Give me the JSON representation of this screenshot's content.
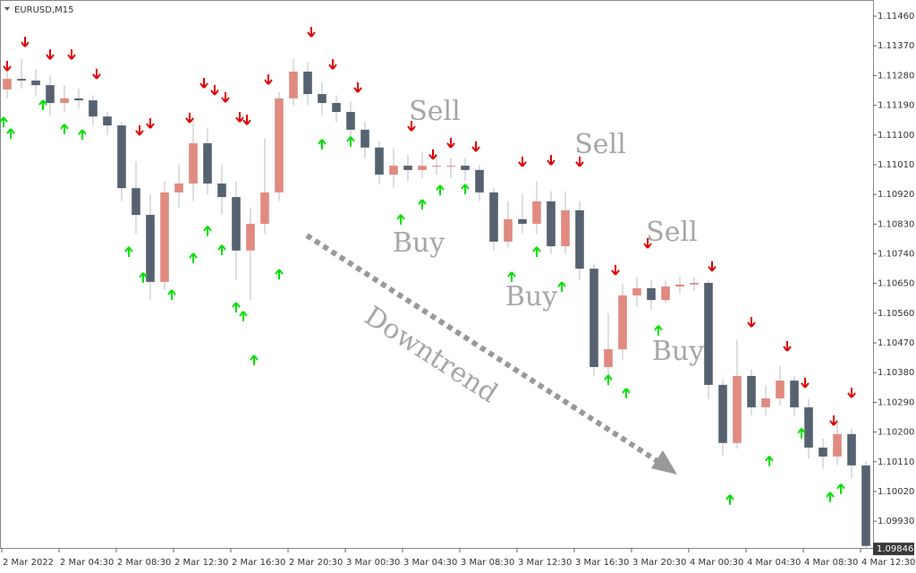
{
  "chart_data": {
    "type": "candlestick",
    "title": "EURUSD,M15",
    "x": [
      2,
      6,
      10,
      14,
      18,
      22,
      26,
      30,
      34,
      38,
      42,
      46,
      50,
      54,
      58,
      62,
      66,
      70,
      74,
      78,
      82,
      86,
      90,
      94,
      98,
      102,
      106,
      110,
      114,
      118,
      122,
      126,
      130,
      134,
      138,
      142,
      146,
      150,
      154,
      158,
      162,
      166,
      170,
      174,
      178,
      182,
      186,
      190,
      194,
      198,
      202,
      206,
      210,
      214,
      218,
      222,
      226,
      230,
      234,
      238,
      242
    ],
    "open": [
      1.11238,
      1.1127,
      1.11265,
      1.11251,
      1.11197,
      1.11211,
      1.11205,
      1.11156,
      1.11129,
      1.10939,
      1.10858,
      1.10655,
      1.10926,
      1.10953,
      1.11075,
      1.10953,
      1.10912,
      1.1075,
      1.10831,
      1.10926,
      1.11211,
      1.11292,
      1.11224,
      1.11197,
      1.1117,
      1.11116,
      1.11062,
      1.1098,
      1.11007,
      1.10994,
      1.11007,
      1.11007,
      1.11007,
      1.10994,
      1.10926,
      1.10777,
      1.10845,
      1.10831,
      1.10899,
      1.10763,
      1.10872,
      1.10695,
      1.10397,
      1.10451,
      1.10614,
      1.10636,
      1.106,
      1.10641,
      1.10647,
      1.10652,
      1.10343,
      1.10167,
      1.1037,
      1.10275,
      1.10302,
      1.10356,
      1.10275,
      1.10153,
      1.10126,
      1.10194,
      1.10099
    ],
    "high": [
      1.113,
      1.1133,
      1.113,
      1.1128,
      1.1125,
      1.1124,
      1.1122,
      1.1117,
      1.1114,
      1.1102,
      1.1092,
      1.1096,
      1.1101,
      1.1115,
      1.1112,
      1.1101,
      1.1096,
      1.1088,
      1.1109,
      1.1123,
      1.1133,
      1.1132,
      1.1126,
      1.1122,
      1.112,
      1.1114,
      1.1108,
      1.1106,
      1.1104,
      1.1105,
      1.1104,
      1.1103,
      1.1103,
      1.1101,
      1.1094,
      1.109,
      1.1092,
      1.1096,
      1.1093,
      1.1093,
      1.109,
      1.1071,
      1.1056,
      1.1065,
      1.1067,
      1.1066,
      1.1066,
      1.1067,
      1.1067,
      1.1066,
      1.1036,
      1.1048,
      1.1039,
      1.1034,
      1.104,
      1.1037,
      1.103,
      1.1018,
      1.1023,
      1.1021,
      1.1011
    ],
    "low": [
      1.1121,
      1.1124,
      1.1122,
      1.1116,
      1.1117,
      1.1118,
      1.1113,
      1.111,
      1.109,
      1.108,
      1.106,
      1.1063,
      1.1088,
      1.109,
      1.1092,
      1.1086,
      1.1066,
      1.106,
      1.108,
      1.109,
      1.1119,
      1.1119,
      1.1116,
      1.1114,
      1.1109,
      1.1103,
      1.1095,
      1.1094,
      1.1096,
      1.1097,
      1.1098,
      1.1097,
      1.1096,
      1.109,
      1.1075,
      1.1076,
      1.108,
      1.108,
      1.1074,
      1.1074,
      1.1066,
      1.1037,
      1.1036,
      1.1042,
      1.1058,
      1.1057,
      1.1059,
      1.1062,
      1.1063,
      1.103,
      1.1013,
      1.1015,
      1.1025,
      1.1025,
      1.1028,
      1.1025,
      1.1012,
      1.1009,
      1.101,
      1.1006,
      1.09849
    ],
    "close": [
      1.1127,
      1.11265,
      1.11251,
      1.11197,
      1.11211,
      1.11205,
      1.11156,
      1.11129,
      1.10939,
      1.10858,
      1.10655,
      1.10926,
      1.10953,
      1.11075,
      1.10953,
      1.10912,
      1.1075,
      1.10831,
      1.10926,
      1.11211,
      1.11292,
      1.11224,
      1.11197,
      1.1117,
      1.11116,
      1.11062,
      1.1098,
      1.11007,
      1.10994,
      1.11007,
      1.11007,
      1.11007,
      1.10994,
      1.10926,
      1.10777,
      1.10845,
      1.10831,
      1.10899,
      1.10763,
      1.10872,
      1.10695,
      1.10397,
      1.10451,
      1.10614,
      1.10636,
      1.106,
      1.10641,
      1.10647,
      1.10652,
      1.10343,
      1.10167,
      1.1037,
      1.10275,
      1.10302,
      1.10356,
      1.10275,
      1.10153,
      1.10126,
      1.10194,
      1.10099,
      1.09855
    ],
    "up_color": "#e08a80",
    "down_color": "#566270",
    "wick_color": "#b8bcc2",
    "sell_signals": {
      "color": "#e00000",
      "x": [
        2,
        7,
        14,
        20,
        27,
        39,
        42,
        53,
        57,
        60,
        63,
        67,
        69,
        75,
        87,
        93,
        100,
        115,
        121,
        126,
        133,
        146,
        154,
        162,
        172,
        181,
        199,
        210,
        220,
        225,
        233,
        238
      ],
      "values": [
        1.11311,
        1.11384,
        1.11346,
        1.11346,
        1.11287,
        1.11116,
        1.11137,
        1.11154,
        1.11259,
        1.11238,
        1.11216,
        1.11156,
        1.11148,
        1.1127,
        1.11414,
        1.11316,
        1.11246,
        1.11129,
        1.11043,
        1.11078,
        1.11067,
        1.11021,
        1.11026,
        1.11021,
        1.10693,
        1.10774,
        1.10704,
        1.10535,
        1.10462,
        1.10351,
        1.10237,
        1.10321
      ]
    },
    "buy_signals": {
      "color": "#00e000",
      "x": [
        1,
        3,
        12,
        18,
        23,
        36,
        40,
        48,
        54,
        58,
        62,
        66,
        68,
        71,
        78,
        90,
        98,
        112,
        118,
        123,
        130,
        143,
        150,
        157,
        170,
        175,
        184,
        204,
        215,
        224,
        232,
        235
      ],
      "values": [
        1.11137,
        1.11102,
        1.11189,
        1.11116,
        1.11099,
        1.10744,
        1.10666,
        1.10614,
        1.10725,
        1.10807,
        1.1075,
        1.10576,
        1.10549,
        1.10416,
        1.10676,
        1.1107,
        1.11078,
        1.10842,
        1.10888,
        1.10931,
        1.10934,
        1.10668,
        1.10744,
        1.10638,
        1.10356,
        1.10316,
        1.10506,
        1.09993,
        1.1011,
        1.10194,
        1.10001,
        1.10026
      ]
    },
    "ylim": [
      1.09849,
      1.11509
    ],
    "yticks": [
      {
        "value": 1.1146,
        "label": "1.11460"
      },
      {
        "value": 1.1137,
        "label": "1.11370"
      },
      {
        "value": 1.1128,
        "label": "1.11280"
      },
      {
        "value": 1.1119,
        "label": "1.11190"
      },
      {
        "value": 1.111,
        "label": "1.11100"
      },
      {
        "value": 1.1101,
        "label": "1.11010"
      },
      {
        "value": 1.1092,
        "label": "1.10920"
      },
      {
        "value": 1.1083,
        "label": "1.10830"
      },
      {
        "value": 1.1074,
        "label": "1.10740"
      },
      {
        "value": 1.1065,
        "label": "1.10650"
      },
      {
        "value": 1.1056,
        "label": "1.10560"
      },
      {
        "value": 1.1047,
        "label": "1.10470"
      },
      {
        "value": 1.1038,
        "label": "1.10380"
      },
      {
        "value": 1.1029,
        "label": "1.10290"
      },
      {
        "value": 1.102,
        "label": "1.10200"
      },
      {
        "value": 1.1011,
        "label": "1.10110"
      },
      {
        "value": 1.1002,
        "label": "1.10020"
      },
      {
        "value": 1.0993,
        "label": "1.09930"
      }
    ],
    "last_price": 1.09846,
    "xlim": [
      0,
      244
    ],
    "xticks": [
      {
        "value": 0,
        "label": "2 Mar 2022"
      },
      {
        "value": 16,
        "label": "2 Mar 04:30"
      },
      {
        "value": 32,
        "label": "2 Mar 08:30"
      },
      {
        "value": 48,
        "label": "2 Mar 12:30"
      },
      {
        "value": 64,
        "label": "2 Mar 16:30"
      },
      {
        "value": 80,
        "label": "2 Mar 20:30"
      },
      {
        "value": 96,
        "label": "3 Mar 00:30"
      },
      {
        "value": 112,
        "label": "3 Mar 04:30"
      },
      {
        "value": 128,
        "label": "3 Mar 08:30"
      },
      {
        "value": 144,
        "label": "3 Mar 12:30"
      },
      {
        "value": 160,
        "label": "3 Mar 16:30"
      },
      {
        "value": 176,
        "label": "3 Mar 20:30"
      },
      {
        "value": 192,
        "label": "4 Mar 00:30"
      },
      {
        "value": 208,
        "label": "4 Mar 04:30"
      },
      {
        "value": 224,
        "label": "4 Mar 08:30"
      },
      {
        "value": 240,
        "label": "4 Mar 12:30"
      }
    ],
    "annotations": [
      "Sell",
      "Sell",
      "Sell",
      "Buy",
      "Buy",
      "Buy",
      "Downtrend"
    ]
  }
}
